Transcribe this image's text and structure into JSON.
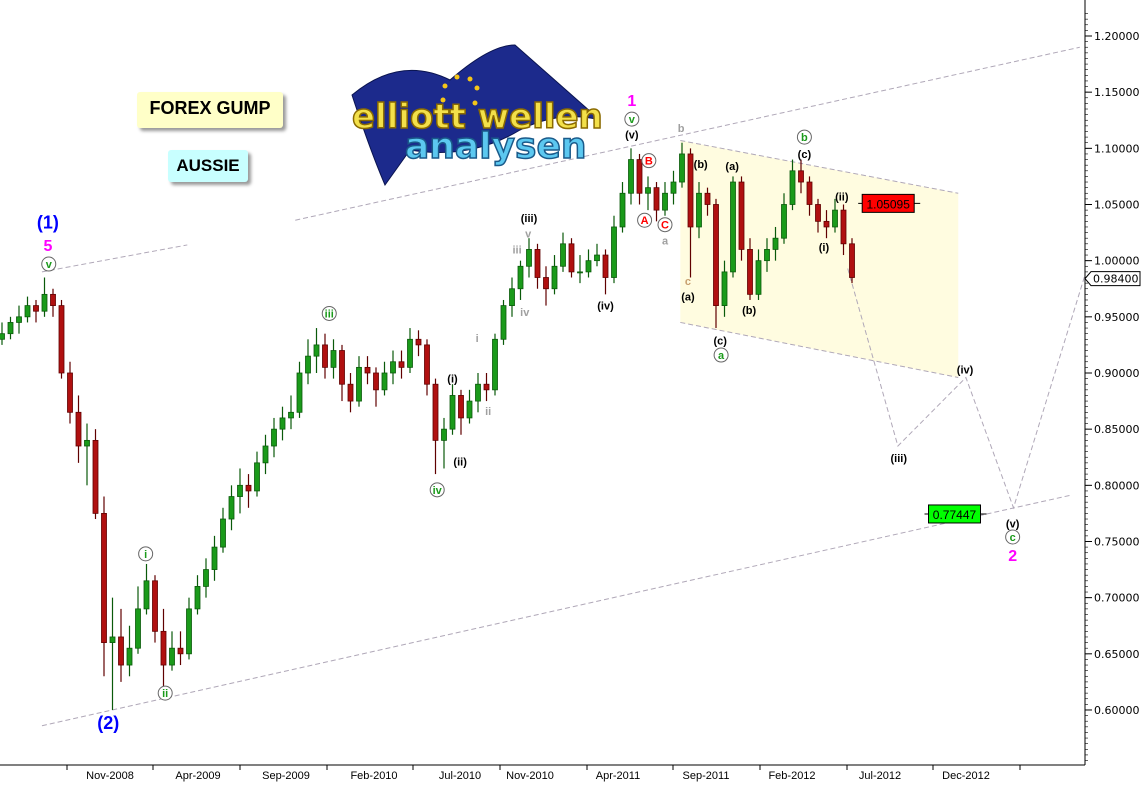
{
  "tags": {
    "title": "FOREX GUMP",
    "symbol": "AUSSIE"
  },
  "logo": {
    "line1": "elliott wellen",
    "line2": "analysen"
  },
  "colors": {
    "up": "#1a9a1a",
    "down": "#b01010",
    "wave_green": "#1a9a1a",
    "wave_red": "#ff0000",
    "magenta": "#ff00ff",
    "blue": "#0000ff",
    "gray": "#a0a0a0",
    "tan": "#c8a070",
    "trendline": "#b0a8b8",
    "zone": "#fffce0"
  },
  "chart_data": {
    "type": "candlestick",
    "ylim": [
      0.55,
      1.22
    ],
    "yticks": [
      "0.60000",
      "0.65000",
      "0.70000",
      "0.75000",
      "0.80000",
      "0.85000",
      "0.90000",
      "0.95000",
      "1.00000",
      "1.05000",
      "1.10000",
      "1.15000",
      "1.20000"
    ],
    "xtick_labels": [
      "Nov-2008",
      "Apr-2009",
      "Sep-2009",
      "Feb-2010",
      "Jul-2010",
      "Nov-2010",
      "Apr-2011",
      "Sep-2011",
      "Feb-2012",
      "Jul-2012",
      "Dec-2012"
    ],
    "grid": false,
    "current_price": "0.98400",
    "candles_ohlc": [
      [
        0.93,
        0.945,
        0.925,
        0.935
      ],
      [
        0.935,
        0.95,
        0.93,
        0.945
      ],
      [
        0.945,
        0.96,
        0.935,
        0.95
      ],
      [
        0.95,
        0.968,
        0.945,
        0.96
      ],
      [
        0.96,
        0.965,
        0.945,
        0.955
      ],
      [
        0.955,
        0.985,
        0.95,
        0.97
      ],
      [
        0.97,
        0.975,
        0.95,
        0.96
      ],
      [
        0.96,
        0.965,
        0.895,
        0.9
      ],
      [
        0.9,
        0.91,
        0.855,
        0.865
      ],
      [
        0.865,
        0.88,
        0.82,
        0.835
      ],
      [
        0.835,
        0.855,
        0.8,
        0.84
      ],
      [
        0.84,
        0.85,
        0.77,
        0.775
      ],
      [
        0.775,
        0.79,
        0.63,
        0.66
      ],
      [
        0.66,
        0.7,
        0.6,
        0.665
      ],
      [
        0.665,
        0.69,
        0.625,
        0.64
      ],
      [
        0.64,
        0.675,
        0.63,
        0.655
      ],
      [
        0.655,
        0.71,
        0.65,
        0.69
      ],
      [
        0.69,
        0.73,
        0.685,
        0.715
      ],
      [
        0.715,
        0.72,
        0.66,
        0.67
      ],
      [
        0.67,
        0.69,
        0.62,
        0.64
      ],
      [
        0.64,
        0.67,
        0.635,
        0.655
      ],
      [
        0.655,
        0.67,
        0.64,
        0.65
      ],
      [
        0.65,
        0.7,
        0.645,
        0.69
      ],
      [
        0.69,
        0.72,
        0.685,
        0.71
      ],
      [
        0.71,
        0.735,
        0.7,
        0.725
      ],
      [
        0.725,
        0.755,
        0.715,
        0.745
      ],
      [
        0.745,
        0.78,
        0.74,
        0.77
      ],
      [
        0.77,
        0.8,
        0.76,
        0.79
      ],
      [
        0.79,
        0.815,
        0.775,
        0.8
      ],
      [
        0.8,
        0.81,
        0.78,
        0.795
      ],
      [
        0.795,
        0.83,
        0.79,
        0.82
      ],
      [
        0.82,
        0.845,
        0.81,
        0.835
      ],
      [
        0.835,
        0.86,
        0.825,
        0.85
      ],
      [
        0.85,
        0.87,
        0.84,
        0.86
      ],
      [
        0.86,
        0.88,
        0.85,
        0.865
      ],
      [
        0.865,
        0.91,
        0.86,
        0.9
      ],
      [
        0.9,
        0.93,
        0.89,
        0.915
      ],
      [
        0.915,
        0.94,
        0.9,
        0.925
      ],
      [
        0.925,
        0.935,
        0.895,
        0.905
      ],
      [
        0.905,
        0.93,
        0.895,
        0.92
      ],
      [
        0.92,
        0.925,
        0.875,
        0.89
      ],
      [
        0.89,
        0.9,
        0.865,
        0.875
      ],
      [
        0.875,
        0.915,
        0.87,
        0.905
      ],
      [
        0.905,
        0.915,
        0.89,
        0.9
      ],
      [
        0.9,
        0.905,
        0.87,
        0.885
      ],
      [
        0.885,
        0.91,
        0.88,
        0.9
      ],
      [
        0.9,
        0.92,
        0.89,
        0.91
      ],
      [
        0.91,
        0.92,
        0.895,
        0.905
      ],
      [
        0.905,
        0.94,
        0.9,
        0.93
      ],
      [
        0.93,
        0.938,
        0.915,
        0.925
      ],
      [
        0.925,
        0.93,
        0.88,
        0.89
      ],
      [
        0.89,
        0.895,
        0.81,
        0.84
      ],
      [
        0.84,
        0.86,
        0.815,
        0.85
      ],
      [
        0.85,
        0.89,
        0.845,
        0.88
      ],
      [
        0.88,
        0.885,
        0.845,
        0.86
      ],
      [
        0.86,
        0.885,
        0.855,
        0.875
      ],
      [
        0.875,
        0.9,
        0.865,
        0.89
      ],
      [
        0.89,
        0.9,
        0.875,
        0.885
      ],
      [
        0.885,
        0.935,
        0.88,
        0.93
      ],
      [
        0.93,
        0.965,
        0.925,
        0.96
      ],
      [
        0.96,
        0.985,
        0.95,
        0.975
      ],
      [
        0.975,
        1.0,
        0.965,
        0.995
      ],
      [
        0.995,
        1.02,
        0.985,
        1.01
      ],
      [
        1.01,
        1.015,
        0.975,
        0.985
      ],
      [
        0.985,
        0.995,
        0.96,
        0.975
      ],
      [
        0.975,
        1.005,
        0.97,
        0.995
      ],
      [
        0.995,
        1.025,
        0.99,
        1.015
      ],
      [
        1.015,
        1.02,
        0.985,
        0.99
      ],
      [
        0.99,
        1.005,
        0.98,
        0.99
      ],
      [
        0.99,
        1.01,
        0.985,
        1.0
      ],
      [
        1.0,
        1.015,
        0.995,
        1.005
      ],
      [
        1.005,
        1.01,
        0.97,
        0.985
      ],
      [
        0.985,
        1.04,
        0.98,
        1.03
      ],
      [
        1.03,
        1.07,
        1.025,
        1.06
      ],
      [
        1.06,
        1.1,
        1.05,
        1.09
      ],
      [
        1.09,
        1.095,
        1.05,
        1.06
      ],
      [
        1.06,
        1.075,
        1.045,
        1.065
      ],
      [
        1.065,
        1.07,
        1.035,
        1.045
      ],
      [
        1.045,
        1.07,
        1.04,
        1.06
      ],
      [
        1.06,
        1.08,
        1.05,
        1.07
      ],
      [
        1.07,
        1.105,
        1.065,
        1.095
      ],
      [
        1.095,
        1.1,
        0.985,
        1.03
      ],
      [
        1.03,
        1.07,
        1.02,
        1.06
      ],
      [
        1.06,
        1.065,
        1.04,
        1.05
      ],
      [
        1.05,
        1.055,
        0.94,
        0.96
      ],
      [
        0.96,
        1.0,
        0.95,
        0.99
      ],
      [
        0.99,
        1.075,
        0.985,
        1.07
      ],
      [
        1.07,
        1.075,
        1.0,
        1.01
      ],
      [
        1.01,
        1.02,
        0.965,
        0.97
      ],
      [
        0.97,
        1.01,
        0.965,
        1.0
      ],
      [
        1.0,
        1.02,
        0.99,
        1.01
      ],
      [
        1.01,
        1.03,
        1.0,
        1.02
      ],
      [
        1.02,
        1.06,
        1.015,
        1.05
      ],
      [
        1.05,
        1.09,
        1.045,
        1.08
      ],
      [
        1.08,
        1.09,
        1.06,
        1.07
      ],
      [
        1.07,
        1.075,
        1.04,
        1.05
      ],
      [
        1.05,
        1.055,
        1.025,
        1.035
      ],
      [
        1.035,
        1.045,
        1.02,
        1.03
      ],
      [
        1.03,
        1.055,
        1.025,
        1.045
      ],
      [
        1.045,
        1.05,
        1.005,
        1.015
      ],
      [
        1.015,
        1.02,
        0.98,
        0.985
      ]
    ],
    "trendlines": [
      {
        "from": [
          34.5,
          1.036
        ],
        "to": [
          126.8,
          1.19
        ]
      },
      {
        "from": [
          4.7,
          0.99
        ],
        "to": [
          21.8,
          1.014
        ]
      },
      {
        "from": [
          4.7,
          0.586
        ],
        "to": [
          125.6,
          0.791
        ]
      },
      {
        "from": [
          79.8,
          1.107
        ],
        "to": [
          112.5,
          1.06
        ]
      },
      {
        "from": [
          79.8,
          0.945
        ],
        "to": [
          112.5,
          0.896
        ]
      }
    ],
    "triangle_zone": [
      [
        79.8,
        1.107
      ],
      [
        112.5,
        1.06
      ],
      [
        112.5,
        0.896
      ],
      [
        79.8,
        0.945
      ]
    ],
    "projection_path": [
      [
        99.5,
        0.993
      ],
      [
        105.4,
        0.835
      ],
      [
        113.4,
        0.896
      ],
      [
        119.0,
        0.78
      ],
      [
        127.4,
        0.987
      ]
    ],
    "price_boxes": [
      {
        "text": "1.05095",
        "price": 1.051,
        "at": 101.2,
        "color": "#ff0000"
      },
      {
        "text": "0.77447",
        "price": 0.7745,
        "at": 109.0,
        "color": "#00ff00"
      }
    ],
    "annotations": [
      {
        "text": "(1)",
        "at": [
          5.4,
          1.033
        ],
        "color": "blue",
        "size": 18,
        "circled": false
      },
      {
        "text": "5",
        "at": [
          5.4,
          1.013
        ],
        "color": "magenta",
        "size": 16,
        "circled": false
      },
      {
        "text": "v",
        "at": [
          5.5,
          0.997
        ],
        "color": "wave_green",
        "circled": true
      },
      {
        "text": "(2)",
        "at": [
          12.5,
          0.5875
        ],
        "color": "blue",
        "size": 18,
        "circled": false
      },
      {
        "text": "i",
        "at": [
          16.9,
          0.739
        ],
        "color": "wave_green",
        "circled": true
      },
      {
        "text": "ii",
        "at": [
          19.2,
          0.615
        ],
        "color": "wave_green",
        "circled": true
      },
      {
        "text": "iii",
        "at": [
          38.5,
          0.953
        ],
        "color": "wave_green",
        "circled": true
      },
      {
        "text": "iv",
        "at": [
          51.2,
          0.796
        ],
        "color": "wave_green",
        "circled": true
      },
      {
        "text": "(i)",
        "at": [
          53.0,
          0.896
        ],
        "color": "black",
        "circled": false
      },
      {
        "text": "(ii)",
        "at": [
          53.9,
          0.822
        ],
        "color": "black",
        "circled": false
      },
      {
        "text": "i",
        "at": [
          55.9,
          0.932
        ],
        "color": "gray",
        "circled": false
      },
      {
        "text": "ii",
        "at": [
          57.2,
          0.867
        ],
        "color": "gray",
        "circled": false
      },
      {
        "text": "(iii)",
        "at": [
          62.0,
          1.039
        ],
        "color": "black",
        "circled": false
      },
      {
        "text": "v",
        "at": [
          61.9,
          1.025
        ],
        "color": "gray",
        "circled": false
      },
      {
        "text": "iii",
        "at": [
          60.6,
          1.011
        ],
        "color": "gray",
        "circled": false
      },
      {
        "text": "iv",
        "at": [
          61.5,
          0.955
        ],
        "color": "gray",
        "circled": false
      },
      {
        "text": "(iv)",
        "at": [
          71.0,
          0.961
        ],
        "color": "black",
        "circled": false
      },
      {
        "text": "1",
        "at": [
          74.1,
          1.142
        ],
        "color": "magenta",
        "size": 16,
        "circled": false
      },
      {
        "text": "v",
        "at": [
          74.1,
          1.126
        ],
        "color": "wave_green",
        "circled": true
      },
      {
        "text": "(v)",
        "at": [
          74.1,
          1.113
        ],
        "color": "black",
        "circled": false
      },
      {
        "text": "B",
        "at": [
          76.1,
          1.089
        ],
        "color": "wave_red",
        "circled": true
      },
      {
        "text": "A",
        "at": [
          75.6,
          1.036
        ],
        "color": "wave_red",
        "circled": true
      },
      {
        "text": "C",
        "at": [
          78.0,
          1.032
        ],
        "color": "wave_red",
        "circled": true
      },
      {
        "text": "a",
        "at": [
          78.0,
          1.019
        ],
        "color": "gray",
        "circled": false
      },
      {
        "text": "b",
        "at": [
          79.9,
          1.119
        ],
        "color": "gray",
        "circled": false
      },
      {
        "text": "c",
        "at": [
          80.7,
          0.983
        ],
        "color": "tan",
        "circled": false
      },
      {
        "text": "(a)",
        "at": [
          80.7,
          0.969
        ],
        "color": "black",
        "circled": false
      },
      {
        "text": "(b)",
        "at": [
          82.2,
          1.087
        ],
        "color": "black",
        "circled": false
      },
      {
        "text": "(a)",
        "at": [
          85.9,
          1.085
        ],
        "color": "black",
        "circled": false
      },
      {
        "text": "(c)",
        "at": [
          84.5,
          0.93
        ],
        "color": "black",
        "circled": false
      },
      {
        "text": "a",
        "at": [
          84.6,
          0.916
        ],
        "color": "wave_green",
        "circled": true
      },
      {
        "text": "(b)",
        "at": [
          87.9,
          0.957
        ],
        "color": "black",
        "circled": false
      },
      {
        "text": "b",
        "at": [
          94.4,
          1.11
        ],
        "color": "wave_green",
        "circled": true
      },
      {
        "text": "(c)",
        "at": [
          94.4,
          1.096
        ],
        "color": "black",
        "circled": false
      },
      {
        "text": "(ii)",
        "at": [
          98.8,
          1.058
        ],
        "color": "black",
        "circled": false
      },
      {
        "text": "(i)",
        "at": [
          96.7,
          1.013
        ],
        "color": "black",
        "circled": false
      },
      {
        "text": "(iv)",
        "at": [
          113.3,
          0.904
        ],
        "color": "black",
        "circled": false
      },
      {
        "text": "(iii)",
        "at": [
          105.5,
          0.825
        ],
        "color": "black",
        "circled": false
      },
      {
        "text": "(v)",
        "at": [
          118.9,
          0.767
        ],
        "color": "black",
        "circled": false
      },
      {
        "text": "c",
        "at": [
          118.9,
          0.754
        ],
        "color": "wave_green",
        "circled": true
      },
      {
        "text": "2",
        "at": [
          118.9,
          0.737
        ],
        "color": "magenta",
        "size": 16,
        "circled": false
      }
    ]
  }
}
